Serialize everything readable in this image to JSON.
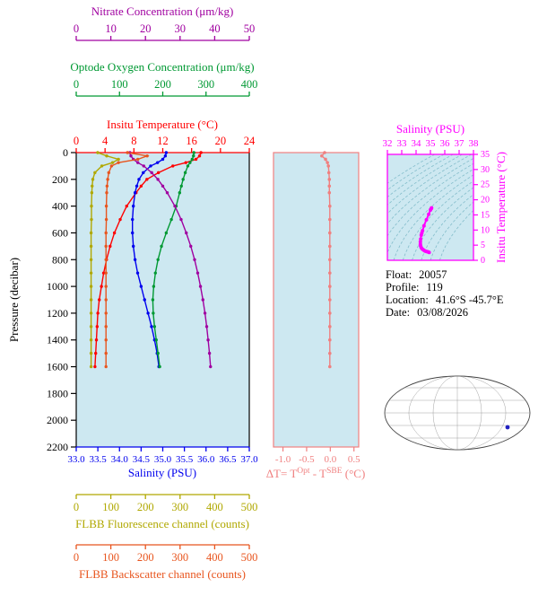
{
  "colors": {
    "panel_bg": "#cde8f1",
    "frame": "#000000"
  },
  "axes": {
    "nitrate": {
      "label": "Nitrate Concentration (μm/kg)",
      "color": "#a000a0",
      "ticks": [
        "0",
        "10",
        "20",
        "30",
        "40",
        "50"
      ],
      "min": 0,
      "max": 50
    },
    "oxygen": {
      "label": "Optode Oxygen Concentration (μm/kg)",
      "color": "#009933",
      "ticks": [
        "0",
        "100",
        "200",
        "300",
        "400"
      ],
      "min": 0,
      "max": 400
    },
    "temperature": {
      "label": "Insitu Temperature (°C)",
      "color": "#ff0000",
      "ticks": [
        "0",
        "4",
        "8",
        "12",
        "16",
        "20",
        "24"
      ],
      "min": 0,
      "max": 24
    },
    "pressure": {
      "label": "Pressure (decibar)",
      "color": "#000000",
      "ticks": [
        "0",
        "200",
        "400",
        "600",
        "800",
        "1000",
        "1200",
        "1400",
        "1600",
        "1800",
        "2000",
        "2200"
      ],
      "min": 0,
      "max": 2200
    },
    "salinity": {
      "label": "Salinity (PSU)",
      "color": "#0000ee",
      "ticks": [
        "33.0",
        "33.5",
        "34.0",
        "34.5",
        "35.0",
        "35.5",
        "36.0",
        "36.5",
        "37.0"
      ],
      "min": 33,
      "max": 37
    },
    "delta_t": {
      "color": "#f08080",
      "ticks": [
        "-1.0",
        "-0.5",
        "0.0",
        "0.5"
      ],
      "min": -1.2,
      "max": 0.6,
      "label_parts": {
        "p1": "ΔT= T",
        "sup1": "Opt",
        "p2": " - T",
        "sup2": "SBE",
        "p3": " (°C)"
      }
    },
    "ts_salinity": {
      "label": "Salinity (PSU)",
      "color": "#ff00ff",
      "ticks": [
        "32",
        "33",
        "34",
        "35",
        "36",
        "37",
        "38"
      ],
      "min": 32,
      "max": 38
    },
    "ts_temperature": {
      "label": "Insitu Temperature (°C)",
      "color": "#ff00ff",
      "ticks": [
        "0",
        "5",
        "10",
        "15",
        "20",
        "25",
        "30",
        "35"
      ],
      "min": 0,
      "max": 35
    },
    "fluorescence": {
      "label": "FLBB Fluorescence channel (counts)",
      "color": "#b0a800",
      "ticks": [
        "0",
        "100",
        "200",
        "300",
        "400",
        "500"
      ],
      "min": 0,
      "max": 500
    },
    "backscatter": {
      "label": "FLBB Backscatter channel (counts)",
      "color": "#e8551e",
      "ticks": [
        "0",
        "100",
        "200",
        "300",
        "400",
        "500"
      ],
      "min": 0,
      "max": 500
    }
  },
  "info": {
    "rows": [
      {
        "label": "Float:",
        "value": "20057"
      },
      {
        "label": "Profile:",
        "value": "119"
      },
      {
        "label": "Location:",
        "value": "41.6°S -45.7°E"
      },
      {
        "label": "Date:",
        "value": "03/08/2026"
      }
    ]
  },
  "map": {
    "marker": {
      "dx": 56,
      "dy": 16,
      "color": "#2020c0"
    },
    "land_color": "#f2b2ae",
    "outline_color": "#9a4a42",
    "land_paths": [
      "M -76 -8 C -74 -20 -66 -28 -54 -31 C -40 -34 -24 -33 -14 -28 C -8 -25 -6 -20 -10 -16 C -16 -11 -26 -13 -34 -10 C -44 -6 -56 -8 -64 -6 C -70 -5 -75 -5 -76 -8 Z",
      "M -81 -6 C -78 -10 -76 -4 -77 2 C -78 8 -81 6 -81 -6 Z",
      "M 76 -10 C 80 -12 82 -6 81 0 C 80 6 76 4 75 -2 Z",
      "M -30 12 C -24 8 -14 9 -12 14 C -11 18 -17 21 -24 20 C -29 19 -32 15 -30 12 Z",
      "M 16 -30 C 26 -36 44 -35 52 -28 C 56 -22 50 -16 42 -14 C 36 -10 30 -8 26 -12 C 20 -16 12 -26 16 -30 Z",
      "M 52 -37 C 58 -39 62 -35 58 -31 C 54 -29 50 -33 52 -37 Z",
      "M 42 -4 C 48 -8 56 -4 57 2 C 58 10 53 20 49 25 C 45 23 42 14 42 8 C 41 2 40 -2 42 -4 Z",
      "M -50 37 C -25 33 25 33 50 37 C 25 41 -25 41 -50 37 Z"
    ]
  },
  "chart_data": [
    {
      "type": "line",
      "id": "profiles",
      "orientation": "vertical-profile",
      "ylabel": "Pressure (decibar)",
      "ylim": [
        0,
        2200
      ],
      "pressure": [
        0,
        25,
        50,
        75,
        100,
        150,
        200,
        250,
        300,
        400,
        500,
        600,
        700,
        800,
        900,
        1000,
        1100,
        1200,
        1300,
        1400,
        1500,
        1600
      ],
      "series": [
        {
          "id": "temperature",
          "name": "Insitu Temperature (°C)",
          "color": "#ff0000",
          "xlim": [
            0,
            24
          ],
          "values": [
            17.3,
            17.1,
            16.6,
            15.2,
            13.4,
            11.4,
            9.8,
            9.0,
            8.3,
            7.0,
            6.1,
            5.3,
            4.7,
            4.2,
            3.8,
            3.5,
            3.2,
            3.0,
            2.9,
            2.8,
            2.7,
            2.6
          ]
        },
        {
          "id": "salinity",
          "name": "Salinity (PSU)",
          "color": "#0000ee",
          "xlim": [
            33,
            37
          ],
          "values": [
            35.08,
            35.06,
            35.0,
            34.88,
            34.72,
            34.55,
            34.45,
            34.4,
            34.36,
            34.32,
            34.3,
            34.3,
            34.32,
            34.36,
            34.42,
            34.5,
            34.58,
            34.66,
            34.74,
            34.81,
            34.87,
            34.91
          ]
        },
        {
          "id": "oxygen",
          "name": "Optode Oxygen Concentration (μm/kg)",
          "color": "#009933",
          "xlim": [
            0,
            400
          ],
          "values": [
            272,
            271,
            268,
            263,
            258,
            252,
            247,
            243,
            239,
            231,
            220,
            208,
            197,
            189,
            183,
            179,
            177,
            178,
            181,
            185,
            189,
            193
          ]
        },
        {
          "id": "nitrate",
          "name": "Nitrate Concentration (μm/kg)",
          "color": "#a000a0",
          "xlim": [
            0,
            50
          ],
          "values": [
            15.5,
            15.8,
            16.5,
            17.8,
            19.5,
            21.8,
            23.6,
            25.0,
            26.3,
            28.5,
            30.3,
            31.8,
            33.1,
            34.2,
            35.1,
            35.9,
            36.6,
            37.2,
            37.7,
            38.1,
            38.5,
            38.8
          ]
        },
        {
          "id": "fluorescence",
          "name": "FLBB Fluorescence channel (counts)",
          "color": "#b0a800",
          "xlim": [
            0,
            500
          ],
          "values": [
            62,
            88,
            122,
            105,
            74,
            54,
            48,
            46,
            45,
            44,
            44,
            43,
            43,
            43,
            43,
            43,
            43,
            43,
            43,
            43,
            43,
            43
          ]
        },
        {
          "id": "backscatter",
          "name": "FLBB Backscatter channel (counts)",
          "color": "#e8551e",
          "xlim": [
            0,
            500
          ],
          "values": [
            148,
            205,
            178,
            122,
            102,
            94,
            91,
            89,
            88,
            87,
            87,
            86,
            86,
            86,
            86,
            86,
            86,
            86,
            86,
            86,
            86,
            86
          ]
        }
      ]
    },
    {
      "type": "line",
      "id": "delta_t",
      "xlabel": "ΔT= T^Opt - T^SBE (°C)",
      "xlim": [
        -1.2,
        0.6
      ],
      "color": "#f08080",
      "pressure": [
        0,
        25,
        50,
        75,
        100,
        150,
        200,
        250,
        300,
        400,
        500,
        600,
        700,
        800,
        900,
        1000,
        1100,
        1200,
        1300,
        1400,
        1500,
        1600
      ],
      "values": [
        -0.12,
        -0.18,
        -0.1,
        -0.06,
        -0.04,
        -0.03,
        -0.02,
        -0.02,
        -0.02,
        -0.01,
        -0.01,
        -0.01,
        -0.01,
        -0.01,
        -0.01,
        -0.01,
        -0.01,
        -0.01,
        -0.01,
        -0.01,
        -0.01,
        -0.01
      ]
    },
    {
      "type": "scatter",
      "id": "ts_diagram",
      "xlabel": "Salinity (PSU)",
      "ylabel": "Insitu Temperature (°C)",
      "xlim": [
        32,
        38
      ],
      "ylim": [
        0,
        35
      ],
      "color": "#ff00ff",
      "source": "temperature and salinity series of profiles chart",
      "isopycnal_levels": [
        22,
        22.5,
        23,
        23.5,
        24,
        24.5,
        25,
        25.5,
        26,
        26.5,
        27,
        27.5,
        28,
        28.5
      ]
    }
  ]
}
